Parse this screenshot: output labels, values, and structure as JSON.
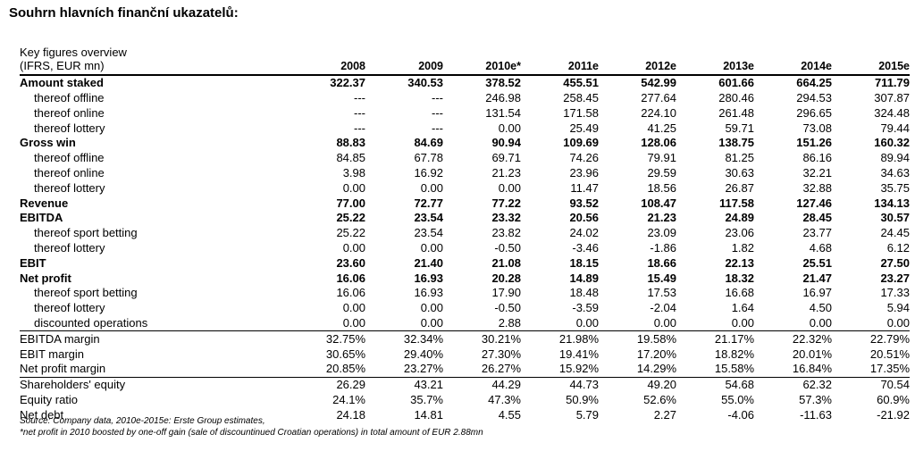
{
  "heading": "Souhrn hlavních finanční ukazatelů:",
  "table": {
    "caption": "Key figures overview",
    "unit_label": "(IFRS, EUR mn)",
    "years": [
      "2008",
      "2009",
      "2010e*",
      "2011e",
      "2012e",
      "2013e",
      "2014e",
      "2015e"
    ],
    "rows": [
      {
        "label": "Amount staked",
        "bold": true,
        "sub": false,
        "values": [
          "322.37",
          "340.53",
          "378.52",
          "455.51",
          "542.99",
          "601.66",
          "664.25",
          "711.79"
        ]
      },
      {
        "label": "thereof offline",
        "bold": false,
        "sub": true,
        "values": [
          "---",
          "---",
          "246.98",
          "258.45",
          "277.64",
          "280.46",
          "294.53",
          "307.87"
        ]
      },
      {
        "label": "thereof online",
        "bold": false,
        "sub": true,
        "values": [
          "---",
          "---",
          "131.54",
          "171.58",
          "224.10",
          "261.48",
          "296.65",
          "324.48"
        ]
      },
      {
        "label": "thereof lottery",
        "bold": false,
        "sub": true,
        "values": [
          "---",
          "---",
          "0.00",
          "25.49",
          "41.25",
          "59.71",
          "73.08",
          "79.44"
        ]
      },
      {
        "label": "Gross win",
        "bold": true,
        "sub": false,
        "values": [
          "88.83",
          "84.69",
          "90.94",
          "109.69",
          "128.06",
          "138.75",
          "151.26",
          "160.32"
        ]
      },
      {
        "label": "thereof offline",
        "bold": false,
        "sub": true,
        "values": [
          "84.85",
          "67.78",
          "69.71",
          "74.26",
          "79.91",
          "81.25",
          "86.16",
          "89.94"
        ]
      },
      {
        "label": "thereof online",
        "bold": false,
        "sub": true,
        "values": [
          "3.98",
          "16.92",
          "21.23",
          "23.96",
          "29.59",
          "30.63",
          "32.21",
          "34.63"
        ]
      },
      {
        "label": "thereof lottery",
        "bold": false,
        "sub": true,
        "values": [
          "0.00",
          "0.00",
          "0.00",
          "11.47",
          "18.56",
          "26.87",
          "32.88",
          "35.75"
        ]
      },
      {
        "label": "Revenue",
        "bold": true,
        "sub": false,
        "values": [
          "77.00",
          "72.77",
          "77.22",
          "93.52",
          "108.47",
          "117.58",
          "127.46",
          "134.13"
        ]
      },
      {
        "label": "EBITDA",
        "bold": true,
        "sub": false,
        "values": [
          "25.22",
          "23.54",
          "23.32",
          "20.56",
          "21.23",
          "24.89",
          "28.45",
          "30.57"
        ]
      },
      {
        "label": "thereof sport betting",
        "bold": false,
        "sub": true,
        "values": [
          "25.22",
          "23.54",
          "23.82",
          "24.02",
          "23.09",
          "23.06",
          "23.77",
          "24.45"
        ]
      },
      {
        "label": "thereof lottery",
        "bold": false,
        "sub": true,
        "values": [
          "0.00",
          "0.00",
          "-0.50",
          "-3.46",
          "-1.86",
          "1.82",
          "4.68",
          "6.12"
        ]
      },
      {
        "label": "EBIT",
        "bold": true,
        "sub": false,
        "values": [
          "23.60",
          "21.40",
          "21.08",
          "18.15",
          "18.66",
          "22.13",
          "25.51",
          "27.50"
        ]
      },
      {
        "label": "Net profit",
        "bold": true,
        "sub": false,
        "values": [
          "16.06",
          "16.93",
          "20.28",
          "14.89",
          "15.49",
          "18.32",
          "21.47",
          "23.27"
        ]
      },
      {
        "label": "thereof sport betting",
        "bold": false,
        "sub": true,
        "values": [
          "16.06",
          "16.93",
          "17.90",
          "18.48",
          "17.53",
          "16.68",
          "16.97",
          "17.33"
        ]
      },
      {
        "label": "thereof lottery",
        "bold": false,
        "sub": true,
        "values": [
          "0.00",
          "0.00",
          "-0.50",
          "-3.59",
          "-2.04",
          "1.64",
          "4.50",
          "5.94"
        ]
      },
      {
        "label": "discounted operations",
        "bold": false,
        "sub": true,
        "values": [
          "0.00",
          "0.00",
          "2.88",
          "0.00",
          "0.00",
          "0.00",
          "0.00",
          "0.00"
        ]
      },
      {
        "label": "EBITDA margin",
        "bold": false,
        "sub": false,
        "values": [
          "32.75%",
          "32.34%",
          "30.21%",
          "21.98%",
          "19.58%",
          "21.17%",
          "22.32%",
          "22.79%"
        ]
      },
      {
        "label": "EBIT margin",
        "bold": false,
        "sub": false,
        "values": [
          "30.65%",
          "29.40%",
          "27.30%",
          "19.41%",
          "17.20%",
          "18.82%",
          "20.01%",
          "20.51%"
        ]
      },
      {
        "label": "Net profit margin",
        "bold": false,
        "sub": false,
        "values": [
          "20.85%",
          "23.27%",
          "26.27%",
          "15.92%",
          "14.29%",
          "15.58%",
          "16.84%",
          "17.35%"
        ]
      },
      {
        "label": "Shareholders' equity",
        "bold": false,
        "sub": false,
        "values": [
          "26.29",
          "43.21",
          "44.29",
          "44.73",
          "49.20",
          "54.68",
          "62.32",
          "70.54"
        ]
      },
      {
        "label": "Equity ratio",
        "bold": false,
        "sub": false,
        "values": [
          "24.1%",
          "35.7%",
          "47.3%",
          "50.9%",
          "52.6%",
          "55.0%",
          "57.3%",
          "60.9%"
        ]
      },
      {
        "label": "Net debt",
        "bold": false,
        "sub": false,
        "values": [
          "24.18",
          "14.81",
          "4.55",
          "5.79",
          "2.27",
          "-4.06",
          "-11.63",
          "-21.92"
        ]
      }
    ]
  },
  "footer": {
    "source": "Source: Company data, 2010e-2015e: Erste Group estimates,",
    "note": "*net profit in 2010 boosted by one-off gain (sale of discountinued Croatian operations) in total amount of EUR 2.88mn"
  }
}
